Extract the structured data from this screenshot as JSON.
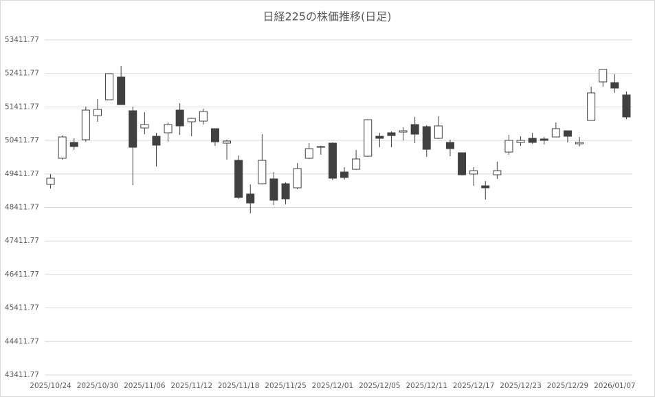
{
  "chart_data": {
    "type": "candlestick",
    "title": "日経225の株価推移(日足)",
    "categories": [
      "2025/10/24",
      null,
      null,
      null,
      "2025/10/30",
      null,
      null,
      null,
      "2025/11/06",
      null,
      null,
      null,
      "2025/11/12",
      null,
      null,
      null,
      "2025/11/18",
      null,
      null,
      null,
      "2025/11/25",
      null,
      null,
      null,
      "2025/12/01",
      null,
      null,
      null,
      "2025/12/05",
      null,
      null,
      null,
      "2025/12/11",
      null,
      null,
      null,
      "2025/12/17",
      null,
      null,
      null,
      "2025/12/23",
      null,
      null,
      null,
      "2025/12/29",
      null,
      null,
      null,
      "2026/01/07",
      null
    ],
    "open": [
      49100,
      49880,
      50352,
      50434,
      51153,
      51625,
      52303,
      51297,
      50783,
      50537,
      50640,
      51317,
      50968,
      50988,
      50763,
      50331,
      49818,
      48812,
      49120,
      49264,
      49120,
      48997,
      49880,
      50208,
      50331,
      49469,
      49551,
      49941,
      50537,
      50640,
      50660,
      50886,
      50824,
      50475,
      50352,
      50044,
      49408,
      49058,
      49387,
      50064,
      50352,
      50475,
      50455,
      50516,
      50701,
      50311,
      51009,
      52159,
      52138,
      51769
    ],
    "high": [
      49408,
      50557,
      50475,
      51420,
      51646,
      52405,
      52631,
      51420,
      51255,
      50640,
      50948,
      51523,
      51091,
      51358,
      50763,
      50434,
      49962,
      49099,
      50598,
      49469,
      49161,
      49736,
      50331,
      50249,
      50352,
      49613,
      50126,
      51030,
      50640,
      50681,
      50804,
      51112,
      50866,
      51132,
      50434,
      50044,
      49613,
      49202,
      49777,
      50578,
      50537,
      50640,
      50516,
      50948,
      50701,
      50516,
      52015,
      52529,
      52385,
      51872
    ],
    "low": [
      48976,
      49839,
      50126,
      50372,
      50968,
      51625,
      51481,
      49079,
      50598,
      49633,
      50372,
      50578,
      50537,
      50886,
      50249,
      49839,
      48668,
      48237,
      49099,
      48483,
      48504,
      48955,
      49859,
      49982,
      49223,
      49243,
      49531,
      49920,
      50208,
      50208,
      50413,
      50331,
      49921,
      50455,
      49941,
      49366,
      49058,
      48647,
      49264,
      49982,
      50249,
      50311,
      50290,
      50516,
      50352,
      50229,
      51009,
      52015,
      51831,
      51050
    ],
    "close": [
      49284,
      50516,
      50229,
      51317,
      51338,
      52405,
      51481,
      50208,
      50886,
      50270,
      50886,
      50845,
      51071,
      51276,
      50372,
      50393,
      48709,
      48545,
      49818,
      48627,
      48668,
      49572,
      50167,
      50229,
      49284,
      49305,
      49859,
      51030,
      50475,
      50557,
      50701,
      50598,
      50146,
      50845,
      50167,
      49387,
      49510,
      48997,
      49510,
      50413,
      50413,
      50352,
      50413,
      50763,
      50537,
      50352,
      51831,
      52529,
      51974,
      51112
    ],
    "up_color": "#ffffff",
    "down_color": "#404040",
    "outline_color": "#404040",
    "ylim": [
      43411.77,
      53411.77
    ],
    "yticks": [
      43411.77,
      44411.77,
      45411.77,
      46411.77,
      47411.77,
      48411.77,
      49411.77,
      50411.77,
      51411.77,
      52411.77,
      53411.77
    ],
    "grid": true
  }
}
